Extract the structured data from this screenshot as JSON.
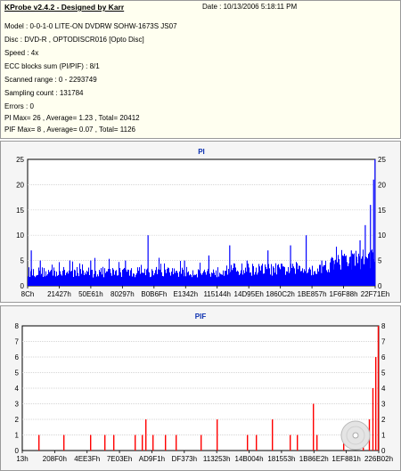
{
  "info": {
    "title": "KProbe v2.4.2 - Designed by Karr",
    "date": "Date : 10/13/2006 5:18:11 PM",
    "lines": [
      "Model : 0-0-1-0 LITE-ON DVDRW SOHW-1673S JS07",
      "Disc : DVD-R , OPTODISCR016 [Opto Disc]",
      "Speed : 4x",
      "ECC blocks sum (PI/PIF) : 8/1",
      "Scanned range : 0 - 2293749",
      "Sampling count : 131784",
      "Errors : 0",
      "PI Max= 26 , Average= 1.23 , Total= 20412",
      "PIF Max= 8 , Average= 0.07 , Total= 1126"
    ]
  },
  "chart_data": [
    {
      "type": "bar",
      "title": "PI",
      "ylim": [
        0,
        25
      ],
      "yticks": [
        0,
        5,
        10,
        15,
        20,
        25
      ],
      "xticks": [
        "8Ch",
        "21427h",
        "50E61h",
        "80297h",
        "B0B6Fh",
        "E1342h",
        "115144h",
        "14D95Eh",
        "1860C2h",
        "1BE857h",
        "1F6F88h",
        "22F71Eh"
      ],
      "grid": true,
      "color": "#0000ff",
      "max": 26,
      "average": 1.23,
      "baseline_level": 3,
      "peaks": [
        {
          "pos": 0.009,
          "value": 7
        },
        {
          "pos": 0.035,
          "value": 5
        },
        {
          "pos": 0.12,
          "value": 5
        },
        {
          "pos": 0.18,
          "value": 5
        },
        {
          "pos": 0.28,
          "value": 5
        },
        {
          "pos": 0.345,
          "value": 10
        },
        {
          "pos": 0.45,
          "value": 5
        },
        {
          "pos": 0.52,
          "value": 6
        },
        {
          "pos": 0.58,
          "value": 8
        },
        {
          "pos": 0.63,
          "value": 5
        },
        {
          "pos": 0.69,
          "value": 7
        },
        {
          "pos": 0.755,
          "value": 8
        },
        {
          "pos": 0.8,
          "value": 10
        },
        {
          "pos": 0.845,
          "value": 5
        },
        {
          "pos": 0.88,
          "value": 5
        },
        {
          "pos": 0.93,
          "value": 7
        },
        {
          "pos": 0.955,
          "value": 9
        },
        {
          "pos": 0.97,
          "value": 12
        },
        {
          "pos": 0.985,
          "value": 16
        },
        {
          "pos": 0.994,
          "value": 21
        },
        {
          "pos": 0.998,
          "value": 26
        }
      ]
    },
    {
      "type": "bar",
      "title": "PIF",
      "ylim": [
        0,
        8
      ],
      "yticks": [
        0,
        1,
        2,
        3,
        4,
        5,
        6,
        7,
        8
      ],
      "xticks": [
        "13h",
        "208F0h",
        "4EE3Fh",
        "7E03Eh",
        "AD9F1h",
        "DF373h",
        "113253h",
        "14B004h",
        "181553h",
        "1B86E2h",
        "1EF881h",
        "226B02h"
      ],
      "grid": true,
      "color": "#ff0000",
      "max": 8,
      "average": 0.07,
      "bars": [
        {
          "pos": 0.045,
          "value": 1
        },
        {
          "pos": 0.115,
          "value": 1
        },
        {
          "pos": 0.19,
          "value": 1
        },
        {
          "pos": 0.23,
          "value": 1
        },
        {
          "pos": 0.255,
          "value": 1
        },
        {
          "pos": 0.315,
          "value": 1
        },
        {
          "pos": 0.335,
          "value": 1
        },
        {
          "pos": 0.345,
          "value": 2
        },
        {
          "pos": 0.365,
          "value": 1
        },
        {
          "pos": 0.4,
          "value": 1
        },
        {
          "pos": 0.43,
          "value": 1
        },
        {
          "pos": 0.5,
          "value": 1
        },
        {
          "pos": 0.545,
          "value": 2
        },
        {
          "pos": 0.63,
          "value": 1
        },
        {
          "pos": 0.655,
          "value": 1
        },
        {
          "pos": 0.7,
          "value": 2
        },
        {
          "pos": 0.75,
          "value": 1
        },
        {
          "pos": 0.77,
          "value": 1
        },
        {
          "pos": 0.815,
          "value": 3
        },
        {
          "pos": 0.825,
          "value": 1
        },
        {
          "pos": 0.9,
          "value": 1
        },
        {
          "pos": 0.955,
          "value": 1
        },
        {
          "pos": 0.972,
          "value": 2
        },
        {
          "pos": 0.982,
          "value": 4
        },
        {
          "pos": 0.99,
          "value": 6
        },
        {
          "pos": 0.997,
          "value": 8
        }
      ]
    }
  ]
}
